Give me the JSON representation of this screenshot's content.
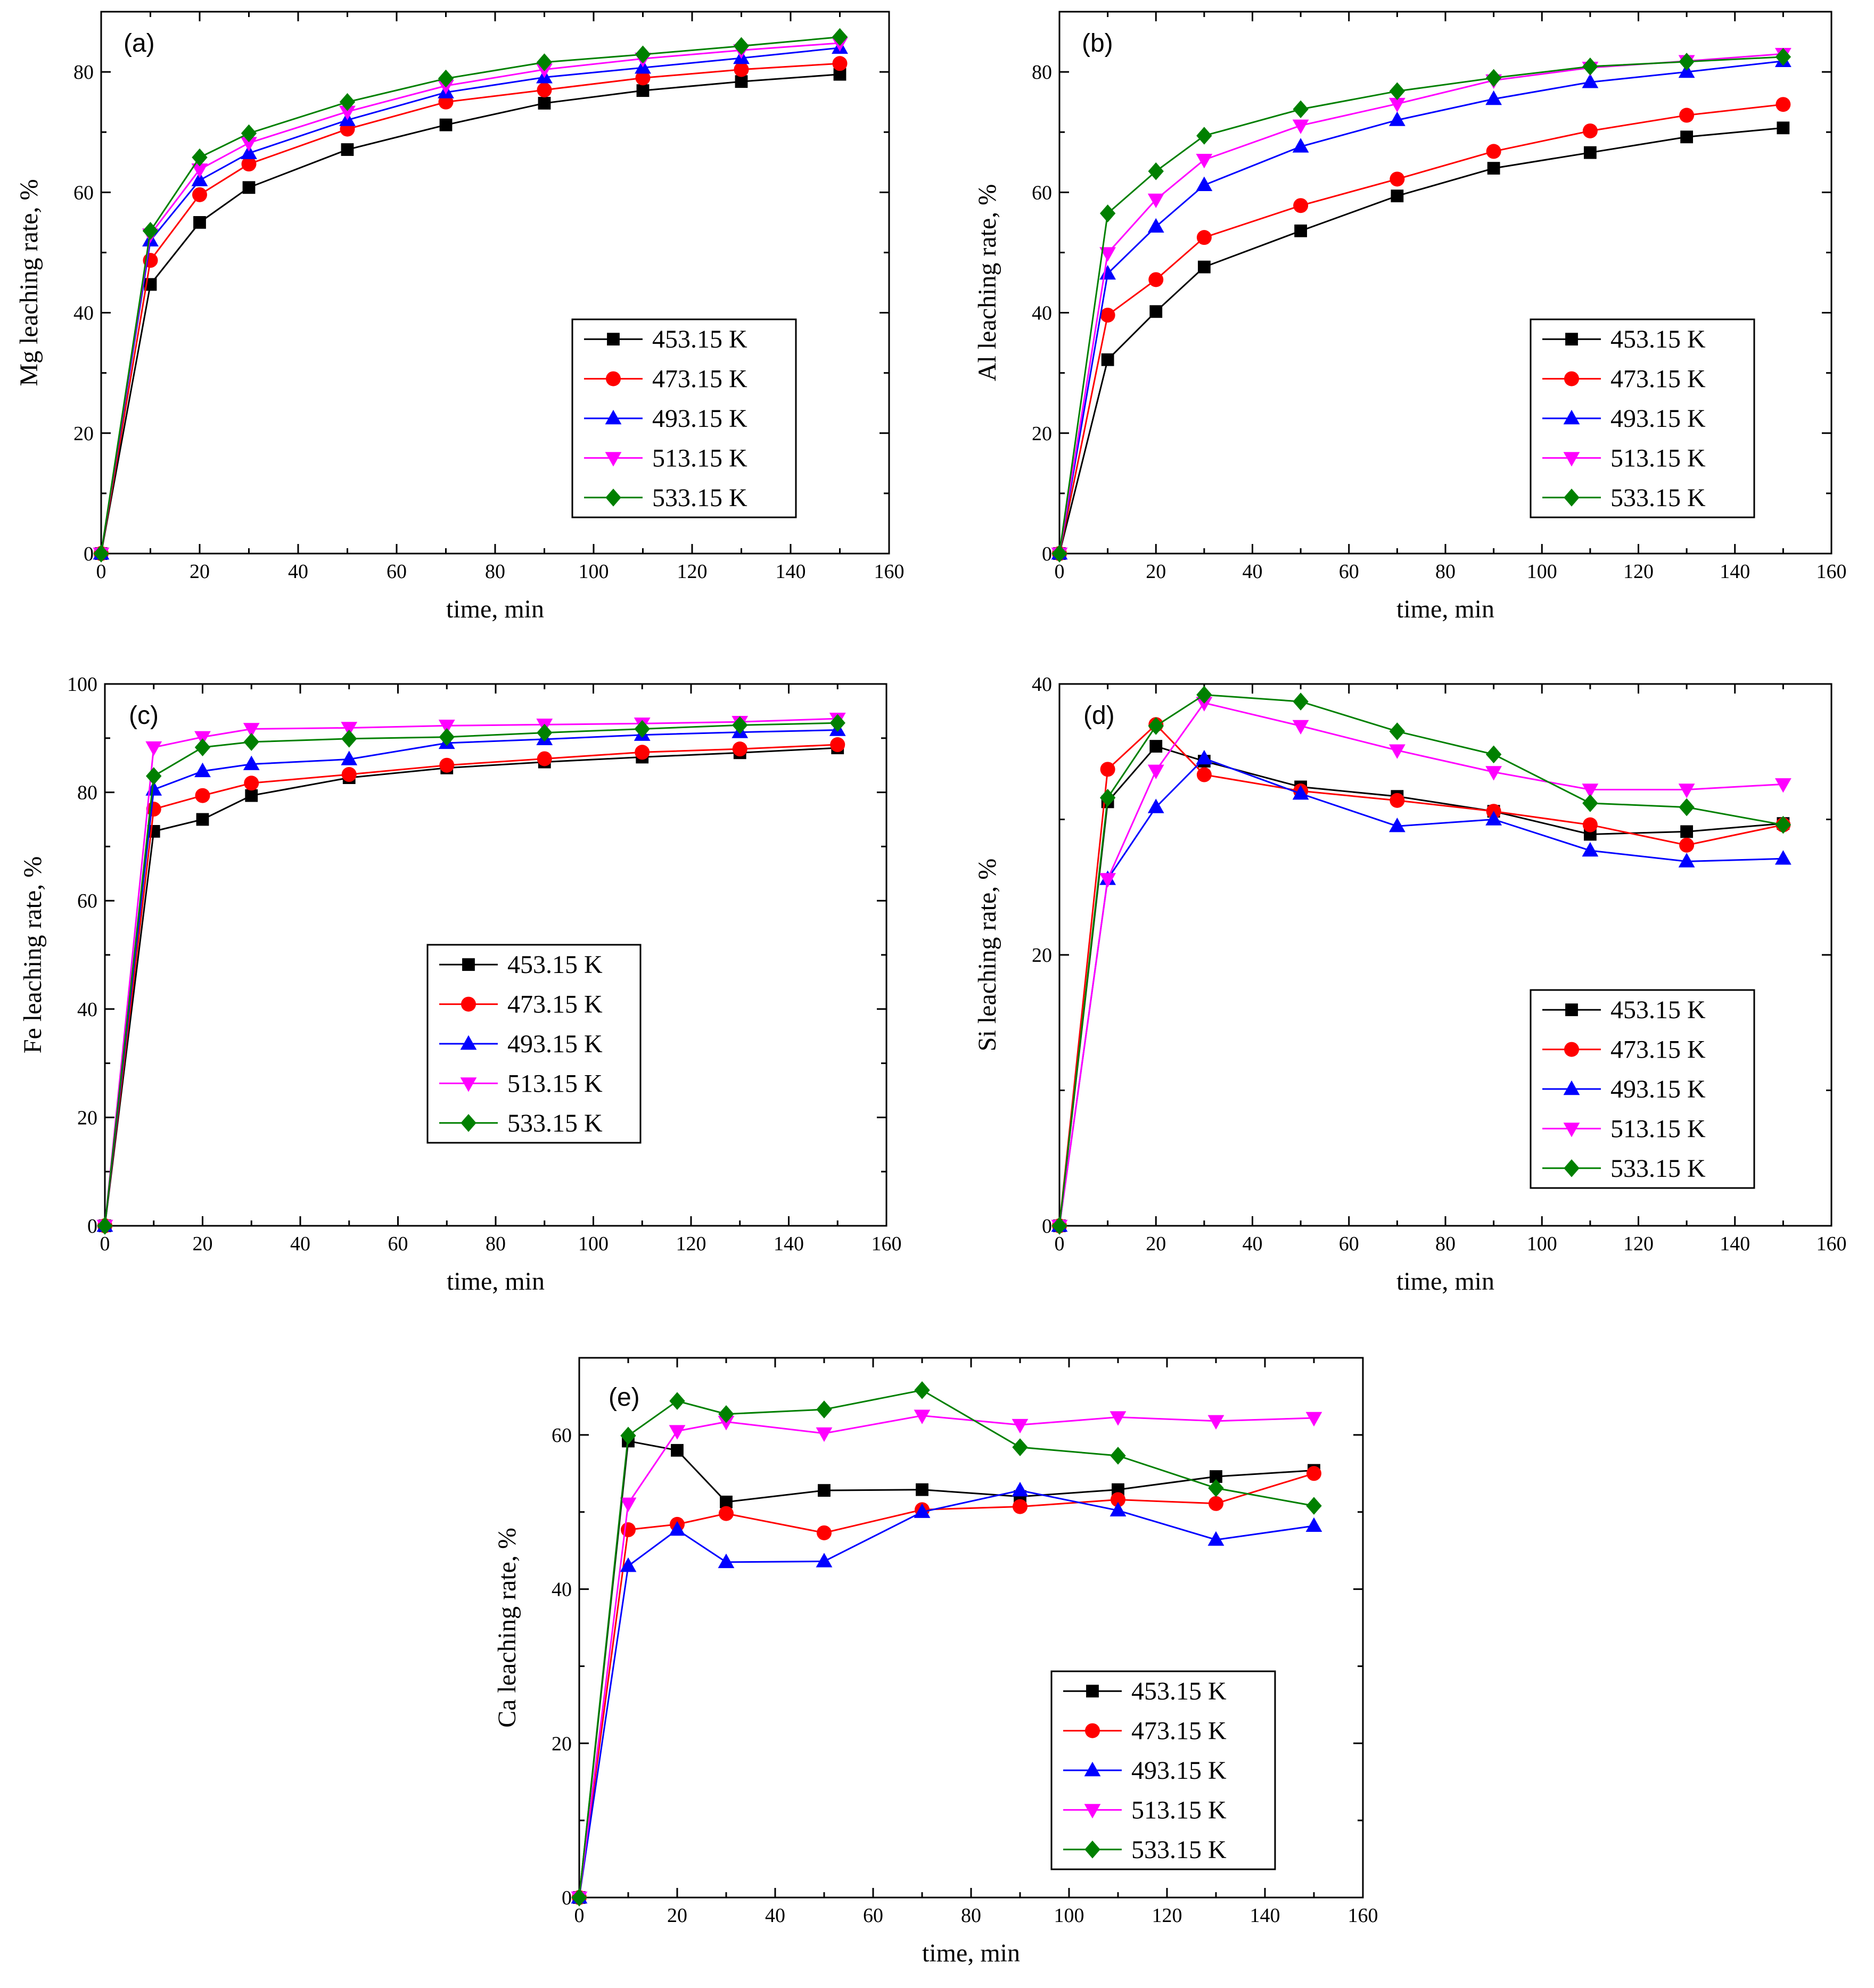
{
  "figure": {
    "series_styles": [
      {
        "name": "453.15 K",
        "color": "#000000",
        "marker": "square"
      },
      {
        "name": "473.15 K",
        "color": "#ff0000",
        "marker": "circle"
      },
      {
        "name": "493.15 K",
        "color": "#0000ff",
        "marker": "triangle-up"
      },
      {
        "name": "513.15 K",
        "color": "#ff00ff",
        "marker": "triangle-down"
      },
      {
        "name": "533.15 K",
        "color": "#008000",
        "marker": "diamond"
      }
    ]
  },
  "chart_data": [
    {
      "id": "a",
      "type": "line",
      "label": "(a)",
      "xlabel": "time, min",
      "ylabel": "Mg leaching rate, %",
      "xlim": [
        0,
        160
      ],
      "ylim": [
        0,
        90
      ],
      "xticks": [
        0,
        20,
        40,
        60,
        80,
        100,
        120,
        140,
        160
      ],
      "yticks": [
        0,
        20,
        40,
        60,
        80
      ],
      "x": [
        0,
        10,
        20,
        30,
        50,
        70,
        90,
        110,
        130,
        150
      ],
      "legend_position": "lower-right",
      "series": [
        {
          "name": "453.15 K",
          "values": [
            0,
            44.7,
            55.0,
            60.8,
            67.1,
            71.2,
            74.8,
            76.9,
            78.4,
            79.6
          ]
        },
        {
          "name": "473.15 K",
          "values": [
            0,
            48.7,
            59.6,
            64.7,
            70.5,
            75.0,
            77.0,
            79.0,
            80.4,
            81.4
          ]
        },
        {
          "name": "493.15 K",
          "values": [
            0,
            52.0,
            62.0,
            66.5,
            72.0,
            76.6,
            79.1,
            80.7,
            82.3,
            84.0
          ]
        },
        {
          "name": "513.15 K",
          "values": [
            0,
            53.0,
            63.8,
            68.2,
            73.4,
            77.7,
            80.4,
            82.2,
            83.6,
            84.8
          ]
        },
        {
          "name": "533.15 K",
          "values": [
            0,
            53.6,
            65.8,
            69.8,
            75.0,
            78.9,
            81.6,
            82.9,
            84.3,
            85.8
          ]
        }
      ]
    },
    {
      "id": "b",
      "type": "line",
      "label": "(b)",
      "xlabel": "time, min",
      "ylabel": "Al leaching rate, %",
      "xlim": [
        0,
        160
      ],
      "ylim": [
        0,
        90
      ],
      "xticks": [
        0,
        20,
        40,
        60,
        80,
        100,
        120,
        140,
        160
      ],
      "yticks": [
        0,
        20,
        40,
        60,
        80
      ],
      "x": [
        0,
        10,
        20,
        30,
        50,
        70,
        90,
        110,
        130,
        150
      ],
      "legend_position": "lower-right",
      "series": [
        {
          "name": "453.15 K",
          "values": [
            0,
            32.2,
            40.2,
            47.6,
            53.6,
            59.4,
            64.0,
            66.6,
            69.2,
            70.7
          ]
        },
        {
          "name": "473.15 K",
          "values": [
            0,
            39.6,
            45.5,
            52.5,
            57.8,
            62.2,
            66.8,
            70.2,
            72.8,
            74.6
          ]
        },
        {
          "name": "493.15 K",
          "values": [
            0,
            46.5,
            54.3,
            61.2,
            67.6,
            72.0,
            75.5,
            78.3,
            80.0,
            81.8
          ]
        },
        {
          "name": "513.15 K",
          "values": [
            0,
            49.9,
            58.8,
            65.4,
            71.1,
            74.7,
            78.6,
            80.7,
            81.8,
            83.0
          ]
        },
        {
          "name": "533.15 K",
          "values": [
            0,
            56.5,
            63.5,
            69.4,
            73.8,
            76.8,
            79.0,
            80.9,
            81.7,
            82.5
          ]
        }
      ]
    },
    {
      "id": "c",
      "type": "line",
      "label": "(c)",
      "xlabel": "time, min",
      "ylabel": "Fe leaching rate, %",
      "xlim": [
        0,
        160
      ],
      "ylim": [
        0,
        100
      ],
      "xticks": [
        0,
        20,
        40,
        60,
        80,
        100,
        120,
        140,
        160
      ],
      "yticks": [
        0,
        20,
        40,
        60,
        80,
        100
      ],
      "x": [
        0,
        10,
        20,
        30,
        50,
        70,
        90,
        110,
        130,
        150
      ],
      "legend_position": "center",
      "series": [
        {
          "name": "453.15 K",
          "values": [
            0,
            72.8,
            75.0,
            79.4,
            82.7,
            84.5,
            85.6,
            86.5,
            87.3,
            88.2
          ]
        },
        {
          "name": "473.15 K",
          "values": [
            0,
            76.9,
            79.4,
            81.7,
            83.3,
            85.0,
            86.2,
            87.4,
            88.0,
            88.8
          ]
        },
        {
          "name": "493.15 K",
          "values": [
            0,
            80.5,
            83.9,
            85.2,
            86.1,
            89.1,
            89.8,
            90.6,
            91.1,
            91.5
          ]
        },
        {
          "name": "513.15 K",
          "values": [
            0,
            88.3,
            90.2,
            91.7,
            91.9,
            92.3,
            92.5,
            92.7,
            93.0,
            93.6
          ]
        },
        {
          "name": "533.15 K",
          "values": [
            0,
            83.0,
            88.3,
            89.3,
            89.9,
            90.2,
            91.0,
            91.7,
            92.4,
            92.8
          ]
        }
      ]
    },
    {
      "id": "d",
      "type": "line",
      "label": "(d)",
      "xlabel": "time, min",
      "ylabel": "Si leaching rate, %",
      "xlim": [
        0,
        160
      ],
      "ylim": [
        0,
        40
      ],
      "xticks": [
        0,
        20,
        40,
        60,
        80,
        100,
        120,
        140,
        160
      ],
      "yticks": [
        0,
        20,
        40
      ],
      "x": [
        0,
        10,
        20,
        30,
        50,
        70,
        90,
        110,
        130,
        150
      ],
      "legend_position": "lower-right",
      "series": [
        {
          "name": "453.15 K",
          "values": [
            0,
            31.3,
            35.4,
            34.3,
            32.4,
            31.7,
            30.6,
            28.9,
            29.1,
            29.7
          ]
        },
        {
          "name": "473.15 K",
          "values": [
            0,
            33.7,
            37.0,
            33.3,
            32.1,
            31.4,
            30.6,
            29.6,
            28.1,
            29.6
          ]
        },
        {
          "name": "493.15 K",
          "values": [
            0,
            25.6,
            30.9,
            34.5,
            31.9,
            29.5,
            30.0,
            27.7,
            26.9,
            27.1
          ]
        },
        {
          "name": "513.15 K",
          "values": [
            0,
            25.6,
            33.6,
            38.6,
            36.9,
            35.1,
            33.5,
            32.2,
            32.2,
            32.6
          ]
        },
        {
          "name": "533.15 K",
          "values": [
            0,
            31.6,
            36.9,
            39.2,
            38.7,
            36.5,
            34.8,
            31.2,
            30.9,
            29.6
          ]
        }
      ]
    },
    {
      "id": "e",
      "type": "line",
      "label": "(e)",
      "xlabel": "time, min",
      "ylabel": "Ca leaching rate, %",
      "xlim": [
        0,
        160
      ],
      "ylim": [
        0,
        70
      ],
      "xticks": [
        0,
        20,
        40,
        60,
        80,
        100,
        120,
        140,
        160
      ],
      "yticks": [
        0,
        20,
        40,
        60
      ],
      "x": [
        0,
        10,
        20,
        30,
        50,
        70,
        90,
        110,
        130,
        150
      ],
      "legend_position": "lower-right",
      "series": [
        {
          "name": "453.15 K",
          "values": [
            0,
            59.2,
            58.0,
            51.3,
            52.8,
            52.9,
            52.0,
            52.9,
            54.6,
            55.4
          ]
        },
        {
          "name": "473.15 K",
          "values": [
            0,
            47.7,
            48.4,
            49.8,
            47.3,
            50.3,
            50.7,
            51.6,
            51.1,
            55.0
          ]
        },
        {
          "name": "493.15 K",
          "values": [
            0,
            43.0,
            47.7,
            43.5,
            43.6,
            50.0,
            52.8,
            50.2,
            46.4,
            48.2
          ]
        },
        {
          "name": "513.15 K",
          "values": [
            0,
            51.1,
            60.5,
            61.7,
            60.2,
            62.5,
            61.3,
            62.3,
            61.8,
            62.2
          ]
        },
        {
          "name": "533.15 K",
          "values": [
            0,
            59.9,
            64.4,
            62.7,
            63.3,
            65.8,
            58.4,
            57.3,
            53.1,
            50.8
          ]
        }
      ]
    }
  ]
}
